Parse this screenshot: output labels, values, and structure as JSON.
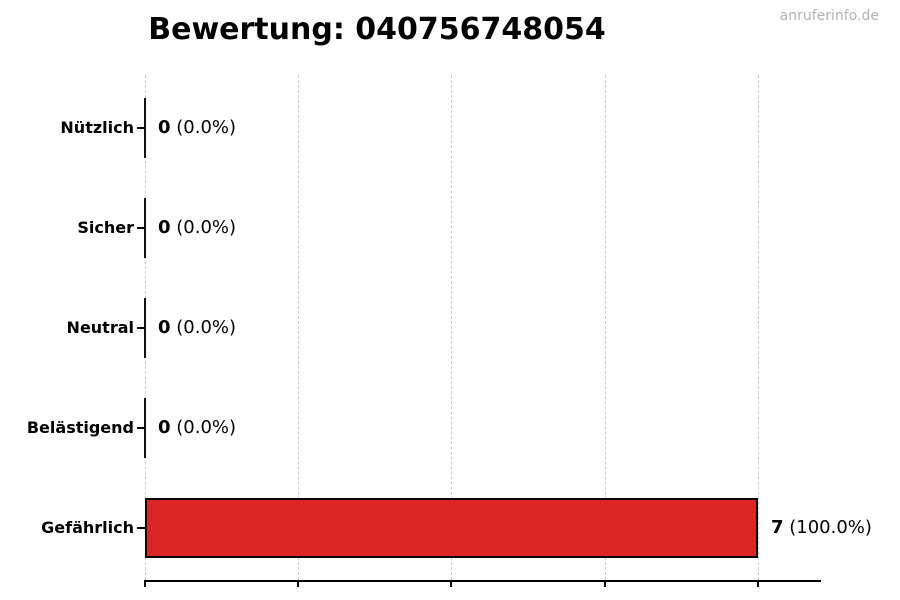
{
  "watermark": "anruferinfo.de",
  "chart_data": {
    "type": "bar",
    "orientation": "horizontal",
    "title": "Bewertung: 040756748054",
    "categories": [
      "Nützlich",
      "Sicher",
      "Neutral",
      "Belästigend",
      "Gefährlich"
    ],
    "values": [
      0,
      0,
      0,
      0,
      7
    ],
    "percent_labels": [
      "0.0%",
      "0.0%",
      "0.0%",
      "0.0%",
      "100.0%"
    ],
    "value_labels": [
      "0 (0.0%)",
      "0 (0.0%)",
      "0 (0.0%)",
      "0 (0.0%)",
      "7 (100.0%)"
    ],
    "xlim": [
      0,
      7.72
    ],
    "x_ticks": [
      0,
      1.75,
      3.5,
      5.25,
      7
    ],
    "x_tick_labels_visible": false,
    "grid": "vertical-dashed",
    "legend": "none",
    "colors": {
      "bar_fill": "#dc2626",
      "bar_edge": "#000000",
      "zero_bar": "#111111",
      "gridline": "#cccccc",
      "axis": "#000000",
      "text": "#000000",
      "watermark": "#b3b3b3"
    }
  }
}
